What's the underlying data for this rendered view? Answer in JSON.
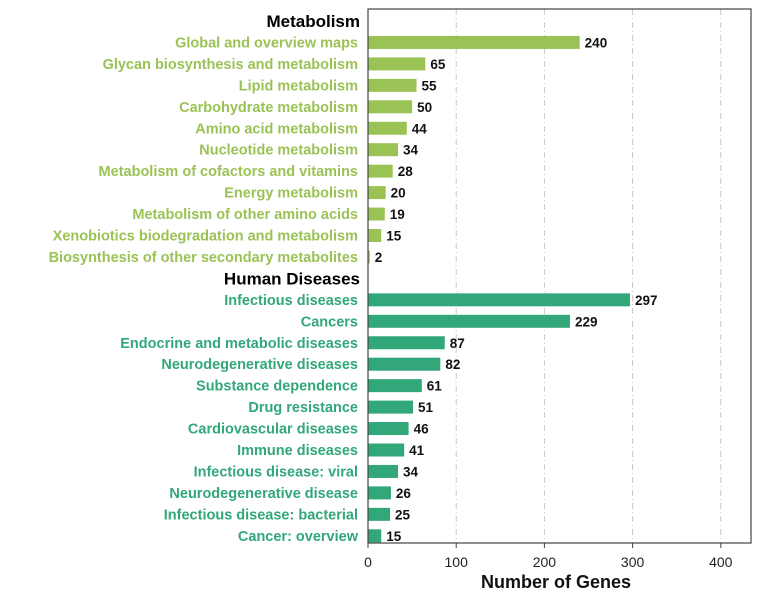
{
  "chart_data": {
    "type": "bar",
    "orientation": "horizontal",
    "xlabel": "Number of Genes",
    "xlim": [
      0,
      430
    ],
    "xticks": [
      0,
      100,
      200,
      300,
      400
    ],
    "grid": "vertical dashed",
    "groups": [
      {
        "name": "Metabolism",
        "color": "#9bc255",
        "categories": [
          "Global and overview maps",
          "Glycan biosynthesis and metabolism",
          "Lipid metabolism",
          "Carbohydrate metabolism",
          "Amino acid metabolism",
          "Nucleotide metabolism",
          "Metabolism of cofactors and vitamins",
          "Energy metabolism",
          "Metabolism of other amino acids",
          "Xenobiotics biodegradation and metabolism",
          "Biosynthesis of other secondary metabolites"
        ],
        "values": [
          240,
          65,
          55,
          50,
          44,
          34,
          28,
          20,
          19,
          15,
          2
        ]
      },
      {
        "name": "Human Diseases",
        "color": "#31a77a",
        "categories": [
          "Infectious diseases",
          "Cancers",
          "Endocrine and metabolic diseases",
          "Neurodegenerative diseases",
          "Substance dependence",
          "Drug resistance",
          "Cardiovascular diseases",
          "Immune diseases",
          "Infectious disease: viral",
          "Neurodegenerative disease",
          "Infectious disease: bacterial",
          "Cancer: overview"
        ],
        "values": [
          297,
          229,
          87,
          82,
          61,
          51,
          46,
          41,
          34,
          26,
          25,
          15
        ]
      }
    ]
  }
}
